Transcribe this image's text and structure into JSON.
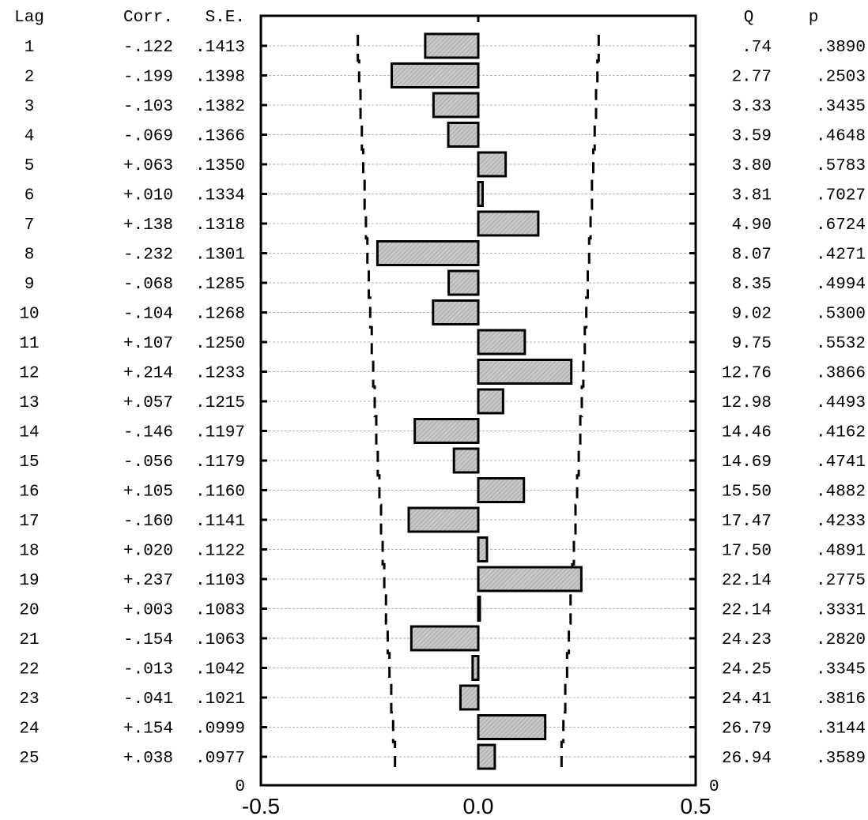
{
  "chart_data": {
    "type": "bar",
    "orientation": "horizontal",
    "headers": {
      "lag": "Lag",
      "corr": "Corr.",
      "se": "S.E.",
      "q": "Q",
      "p": "p"
    },
    "xlim": [
      -0.5,
      0.5
    ],
    "x_ticks": [
      "-0.5",
      "0.0",
      "0.5"
    ],
    "zero_left_label": "0",
    "zero_right_label": "0",
    "lags": [
      "1",
      "2",
      "3",
      "4",
      "5",
      "6",
      "7",
      "8",
      "9",
      "10",
      "11",
      "12",
      "13",
      "14",
      "15",
      "16",
      "17",
      "18",
      "19",
      "20",
      "21",
      "22",
      "23",
      "24",
      "25"
    ],
    "corr_labels": [
      "-.122",
      "-.199",
      "-.103",
      "-.069",
      "+.063",
      "+.010",
      "+.138",
      "-.232",
      "-.068",
      "-.104",
      "+.107",
      "+.214",
      "+.057",
      "-.146",
      "-.056",
      "+.105",
      "-.160",
      "+.020",
      "+.237",
      "+.003",
      "-.154",
      "-.013",
      "-.041",
      "+.154",
      "+.038"
    ],
    "se_labels": [
      ".1413",
      ".1398",
      ".1382",
      ".1366",
      ".1350",
      ".1334",
      ".1318",
      ".1301",
      ".1285",
      ".1268",
      ".1250",
      ".1233",
      ".1215",
      ".1197",
      ".1179",
      ".1160",
      ".1141",
      ".1122",
      ".1103",
      ".1083",
      ".1063",
      ".1042",
      ".1021",
      ".0999",
      ".0977"
    ],
    "q_labels": [
      ".74",
      "2.77",
      "3.33",
      "3.59",
      "3.80",
      "3.81",
      "4.90",
      "8.07",
      "8.35",
      "9.02",
      "9.75",
      "12.76",
      "12.98",
      "14.46",
      "14.69",
      "15.50",
      "17.47",
      "17.50",
      "22.14",
      "22.14",
      "24.23",
      "24.25",
      "24.41",
      "26.79",
      "26.94"
    ],
    "p_labels": [
      ".3890",
      ".2503",
      ".3435",
      ".4648",
      ".5783",
      ".7027",
      ".6724",
      ".4271",
      ".4994",
      ".5300",
      ".5532",
      ".3866",
      ".4493",
      ".4162",
      ".4741",
      ".4882",
      ".4233",
      ".4891",
      ".2775",
      ".3331",
      ".2820",
      ".3345",
      ".3816",
      ".3144",
      ".3589"
    ],
    "values": [
      -0.122,
      -0.199,
      -0.103,
      -0.069,
      0.063,
      0.01,
      0.138,
      -0.232,
      -0.068,
      -0.104,
      0.107,
      0.214,
      0.057,
      -0.146,
      -0.056,
      0.105,
      -0.16,
      0.02,
      0.237,
      0.003,
      -0.154,
      -0.013,
      -0.041,
      0.154,
      0.038
    ],
    "confidence_limit_factor": 1.96,
    "grid": true,
    "colors": {
      "bar_fill": "#c8c8c8",
      "bar_stroke": "#000000",
      "grid": "#b4b4b4"
    }
  }
}
